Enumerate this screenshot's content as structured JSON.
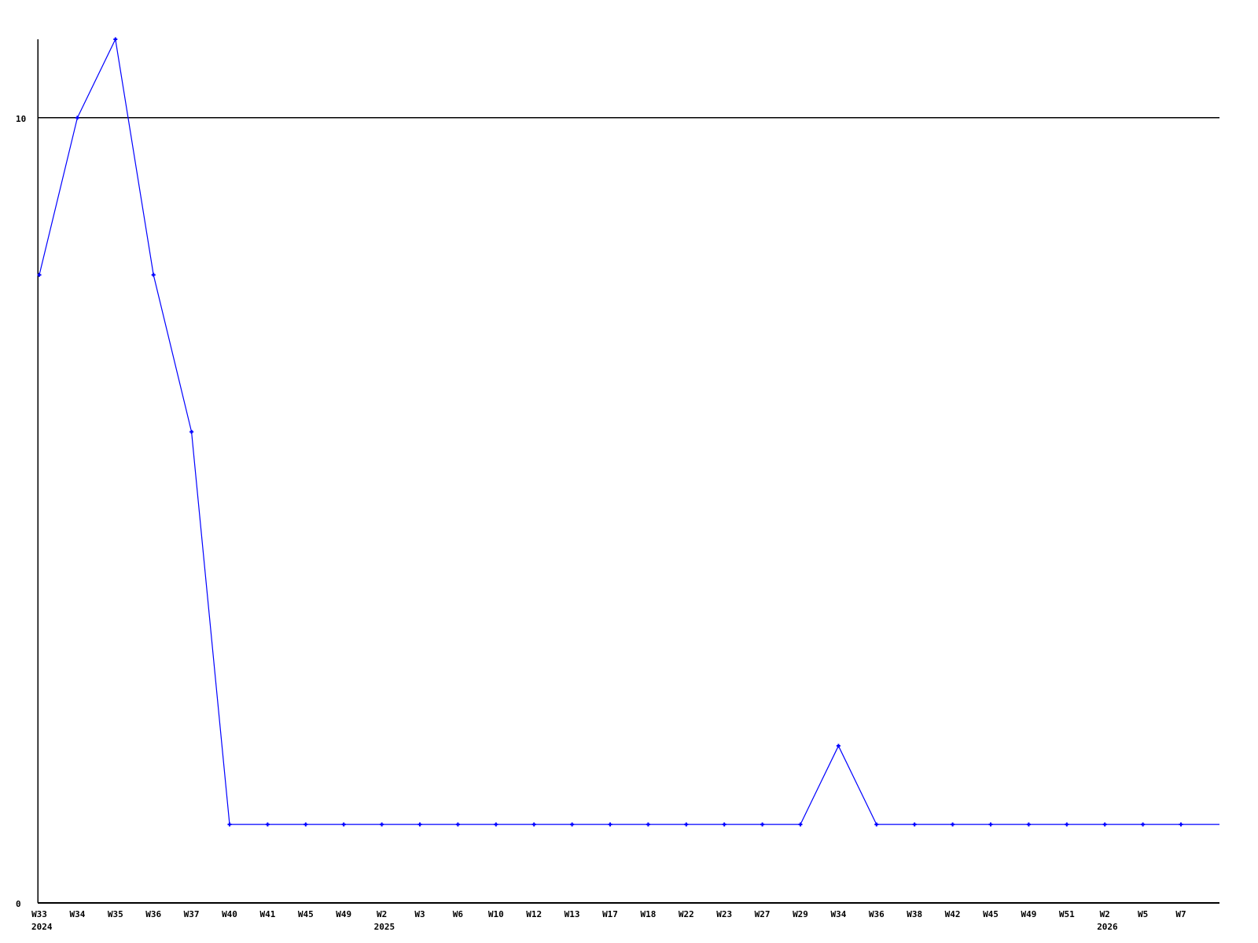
{
  "chart_data": {
    "type": "line",
    "title": "",
    "xlabel": "",
    "ylabel": "",
    "legend": null,
    "background_color": "#ffffff",
    "line_color": "#0000ff",
    "axis_color": "#000000",
    "ylim": [
      0,
      11
    ],
    "yticks": [
      {
        "value": 10,
        "label": "10"
      },
      {
        "value": 0,
        "label": "0"
      }
    ],
    "gridlines": [
      10
    ],
    "grid": "horizontal-at-10-only",
    "legend_position": "none",
    "x_categories": [
      "W33",
      "W34",
      "W35",
      "W36",
      "W37",
      "W40",
      "W41",
      "W45",
      "W49",
      "W2",
      "W3",
      "W6",
      "W10",
      "W12",
      "W13",
      "W17",
      "W18",
      "W22",
      "W23",
      "W27",
      "W29",
      "W34",
      "W36",
      "W38",
      "W42",
      "W45",
      "W49",
      "W51",
      "W2",
      "W5",
      "W7"
    ],
    "year_markers": [
      {
        "index": 0,
        "label": "2024"
      },
      {
        "index": 9,
        "label": "2025"
      },
      {
        "index": 28,
        "label": "2026"
      }
    ],
    "values": [
      8,
      10,
      11,
      8,
      6,
      1,
      1,
      1,
      1,
      1,
      1,
      1,
      1,
      1,
      1,
      1,
      1,
      1,
      1,
      1,
      1,
      2,
      1,
      1,
      1,
      1,
      1,
      1,
      1,
      1,
      1
    ],
    "extend_right_value": 1
  }
}
